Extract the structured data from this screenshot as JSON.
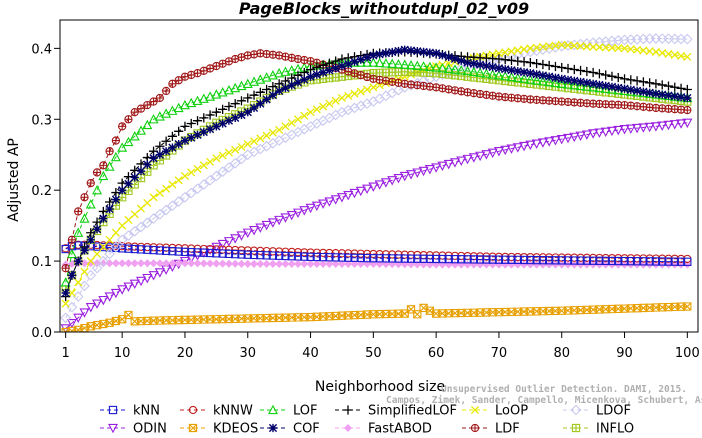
{
  "chart_data": {
    "type": "line",
    "title": "PageBlocks_withoutdupl_02_v09",
    "xlabel": "Neighborhood size",
    "ylabel": "Adjusted AP",
    "xlim": [
      1,
      100
    ],
    "ylim": [
      0,
      0.44
    ],
    "x_ticks": [
      1,
      10,
      20,
      30,
      40,
      50,
      60,
      70,
      80,
      90,
      100
    ],
    "y_ticks": [
      0.0,
      0.1,
      0.2,
      0.3,
      0.4
    ],
    "x_tick_labels": [
      "1",
      "10",
      "20",
      "30",
      "40",
      "50",
      "60",
      "70",
      "80",
      "90",
      "100"
    ],
    "y_tick_labels": [
      "0.0",
      "0.1",
      "0.2",
      "0.3",
      "0.4"
    ],
    "grid": false,
    "legend_position": "bottom",
    "watermark": [
      "Unsupervised Outlier Detection. DAMI, 2015.",
      "Campos, Zimek, Sander, Campello, Micenkova, Schubert, Assent, Houle"
    ],
    "series": [
      {
        "name": "kNN",
        "color": "#1a1ad0",
        "marker": "square",
        "points": [
          [
            1,
            0.117
          ],
          [
            2,
            0.121
          ],
          [
            3,
            0.122
          ],
          [
            5,
            0.121
          ],
          [
            10,
            0.118
          ],
          [
            20,
            0.113
          ],
          [
            30,
            0.109
          ],
          [
            40,
            0.106
          ],
          [
            50,
            0.104
          ],
          [
            60,
            0.103
          ],
          [
            70,
            0.102
          ],
          [
            80,
            0.101
          ],
          [
            90,
            0.1
          ],
          [
            100,
            0.099
          ]
        ]
      },
      {
        "name": "kNNW",
        "color": "#c02020",
        "marker": "circle",
        "points": [
          [
            1,
            0.118
          ],
          [
            2,
            0.122
          ],
          [
            3,
            0.123
          ],
          [
            5,
            0.123
          ],
          [
            10,
            0.121
          ],
          [
            20,
            0.118
          ],
          [
            30,
            0.115
          ],
          [
            40,
            0.112
          ],
          [
            50,
            0.11
          ],
          [
            60,
            0.108
          ],
          [
            70,
            0.106
          ],
          [
            80,
            0.105
          ],
          [
            90,
            0.104
          ],
          [
            100,
            0.103
          ]
        ]
      },
      {
        "name": "LOF",
        "color": "#10d010",
        "marker": "triangle-up",
        "points": [
          [
            1,
            0.07
          ],
          [
            2,
            0.11
          ],
          [
            3,
            0.14
          ],
          [
            5,
            0.18
          ],
          [
            7,
            0.22
          ],
          [
            10,
            0.26
          ],
          [
            15,
            0.3
          ],
          [
            20,
            0.32
          ],
          [
            25,
            0.335
          ],
          [
            30,
            0.35
          ],
          [
            35,
            0.365
          ],
          [
            40,
            0.375
          ],
          [
            45,
            0.38
          ],
          [
            50,
            0.38
          ],
          [
            55,
            0.377
          ],
          [
            60,
            0.373
          ],
          [
            65,
            0.368
          ],
          [
            70,
            0.362
          ],
          [
            75,
            0.356
          ],
          [
            80,
            0.35
          ],
          [
            85,
            0.345
          ],
          [
            90,
            0.34
          ],
          [
            95,
            0.335
          ],
          [
            100,
            0.33
          ]
        ]
      },
      {
        "name": "SimplifiedLOF",
        "color": "#000000",
        "marker": "plus",
        "points": [
          [
            1,
            0.05
          ],
          [
            2,
            0.08
          ],
          [
            3,
            0.1
          ],
          [
            5,
            0.14
          ],
          [
            7,
            0.17
          ],
          [
            10,
            0.21
          ],
          [
            15,
            0.255
          ],
          [
            20,
            0.29
          ],
          [
            25,
            0.31
          ],
          [
            30,
            0.33
          ],
          [
            35,
            0.35
          ],
          [
            40,
            0.37
          ],
          [
            45,
            0.385
          ],
          [
            50,
            0.393
          ],
          [
            55,
            0.395
          ],
          [
            60,
            0.392
          ],
          [
            65,
            0.388
          ],
          [
            70,
            0.385
          ],
          [
            75,
            0.38
          ],
          [
            80,
            0.373
          ],
          [
            85,
            0.366
          ],
          [
            90,
            0.357
          ],
          [
            95,
            0.35
          ],
          [
            100,
            0.342
          ]
        ]
      },
      {
        "name": "LoOP",
        "color": "#e8e800",
        "marker": "x",
        "points": [
          [
            1,
            0.04
          ],
          [
            3,
            0.07
          ],
          [
            5,
            0.1
          ],
          [
            10,
            0.15
          ],
          [
            15,
            0.19
          ],
          [
            20,
            0.22
          ],
          [
            25,
            0.245
          ],
          [
            30,
            0.265
          ],
          [
            35,
            0.285
          ],
          [
            40,
            0.31
          ],
          [
            45,
            0.33
          ],
          [
            50,
            0.345
          ],
          [
            55,
            0.36
          ],
          [
            60,
            0.375
          ],
          [
            65,
            0.385
          ],
          [
            70,
            0.393
          ],
          [
            75,
            0.4
          ],
          [
            80,
            0.405
          ],
          [
            85,
            0.402
          ],
          [
            90,
            0.4
          ],
          [
            95,
            0.395
          ],
          [
            100,
            0.388
          ]
        ]
      },
      {
        "name": "LDOF",
        "color": "#c8c8f0",
        "marker": "diamond",
        "points": [
          [
            1,
            0.02
          ],
          [
            3,
            0.05
          ],
          [
            5,
            0.08
          ],
          [
            10,
            0.13
          ],
          [
            15,
            0.16
          ],
          [
            20,
            0.19
          ],
          [
            25,
            0.22
          ],
          [
            30,
            0.25
          ],
          [
            35,
            0.27
          ],
          [
            40,
            0.29
          ],
          [
            45,
            0.31
          ],
          [
            50,
            0.325
          ],
          [
            55,
            0.345
          ],
          [
            60,
            0.36
          ],
          [
            65,
            0.375
          ],
          [
            70,
            0.385
          ],
          [
            75,
            0.395
          ],
          [
            80,
            0.403
          ],
          [
            85,
            0.408
          ],
          [
            90,
            0.412
          ],
          [
            95,
            0.414
          ],
          [
            100,
            0.413
          ]
        ]
      },
      {
        "name": "ODIN",
        "color": "#9a20e0",
        "marker": "triangle-down",
        "points": [
          [
            1,
            0.005
          ],
          [
            3,
            0.02
          ],
          [
            5,
            0.035
          ],
          [
            10,
            0.06
          ],
          [
            15,
            0.08
          ],
          [
            20,
            0.1
          ],
          [
            25,
            0.12
          ],
          [
            30,
            0.14
          ],
          [
            35,
            0.158
          ],
          [
            40,
            0.175
          ],
          [
            45,
            0.19
          ],
          [
            50,
            0.205
          ],
          [
            55,
            0.22
          ],
          [
            60,
            0.232
          ],
          [
            65,
            0.244
          ],
          [
            70,
            0.255
          ],
          [
            75,
            0.264
          ],
          [
            80,
            0.272
          ],
          [
            85,
            0.28
          ],
          [
            90,
            0.286
          ],
          [
            95,
            0.29
          ],
          [
            100,
            0.295
          ]
        ]
      },
      {
        "name": "KDEOS",
        "color": "#e8a000",
        "marker": "square-x",
        "points": [
          [
            1,
            0.0
          ],
          [
            3,
            0.003
          ],
          [
            5,
            0.008
          ],
          [
            8,
            0.013
          ],
          [
            10,
            0.018
          ],
          [
            11,
            0.024
          ],
          [
            12,
            0.015
          ],
          [
            15,
            0.016
          ],
          [
            20,
            0.017
          ],
          [
            30,
            0.019
          ],
          [
            40,
            0.021
          ],
          [
            50,
            0.025
          ],
          [
            55,
            0.026
          ],
          [
            56,
            0.032
          ],
          [
            57,
            0.025
          ],
          [
            58,
            0.034
          ],
          [
            60,
            0.026
          ],
          [
            70,
            0.028
          ],
          [
            80,
            0.03
          ],
          [
            90,
            0.033
          ],
          [
            100,
            0.036
          ]
        ]
      },
      {
        "name": "COF",
        "color": "#00006a",
        "marker": "asterisk",
        "points": [
          [
            1,
            0.055
          ],
          [
            2,
            0.08
          ],
          [
            3,
            0.1
          ],
          [
            5,
            0.13
          ],
          [
            7,
            0.16
          ],
          [
            10,
            0.2
          ],
          [
            15,
            0.245
          ],
          [
            20,
            0.27
          ],
          [
            25,
            0.29
          ],
          [
            30,
            0.31
          ],
          [
            35,
            0.34
          ],
          [
            40,
            0.36
          ],
          [
            45,
            0.375
          ],
          [
            50,
            0.39
          ],
          [
            55,
            0.398
          ],
          [
            60,
            0.393
          ],
          [
            65,
            0.38
          ],
          [
            70,
            0.372
          ],
          [
            75,
            0.365
          ],
          [
            80,
            0.357
          ],
          [
            85,
            0.35
          ],
          [
            90,
            0.343
          ],
          [
            95,
            0.336
          ],
          [
            100,
            0.33
          ]
        ]
      },
      {
        "name": "FastABOD",
        "color": "#f0a0f0",
        "marker": "diamond-filled",
        "points": [
          [
            1,
            0.095
          ],
          [
            3,
            0.097
          ],
          [
            5,
            0.097
          ],
          [
            10,
            0.097
          ],
          [
            20,
            0.097
          ],
          [
            30,
            0.096
          ],
          [
            40,
            0.096
          ],
          [
            50,
            0.096
          ],
          [
            60,
            0.095
          ],
          [
            70,
            0.095
          ],
          [
            80,
            0.095
          ],
          [
            90,
            0.095
          ],
          [
            100,
            0.095
          ]
        ]
      },
      {
        "name": "LDF",
        "color": "#a01818",
        "marker": "circle-plus",
        "points": [
          [
            1,
            0.09
          ],
          [
            2,
            0.13
          ],
          [
            3,
            0.17
          ],
          [
            4,
            0.19
          ],
          [
            5,
            0.21
          ],
          [
            6,
            0.225
          ],
          [
            7,
            0.235
          ],
          [
            8,
            0.255
          ],
          [
            9,
            0.27
          ],
          [
            10,
            0.29
          ],
          [
            12,
            0.31
          ],
          [
            14,
            0.32
          ],
          [
            16,
            0.33
          ],
          [
            18,
            0.35
          ],
          [
            20,
            0.36
          ],
          [
            22,
            0.365
          ],
          [
            25,
            0.375
          ],
          [
            28,
            0.385
          ],
          [
            30,
            0.39
          ],
          [
            32,
            0.393
          ],
          [
            35,
            0.39
          ],
          [
            38,
            0.385
          ],
          [
            40,
            0.382
          ],
          [
            45,
            0.37
          ],
          [
            50,
            0.357
          ],
          [
            55,
            0.35
          ],
          [
            60,
            0.345
          ],
          [
            65,
            0.338
          ],
          [
            70,
            0.332
          ],
          [
            75,
            0.328
          ],
          [
            80,
            0.325
          ],
          [
            85,
            0.322
          ],
          [
            90,
            0.32
          ],
          [
            95,
            0.316
          ],
          [
            100,
            0.313
          ]
        ]
      },
      {
        "name": "INFLO",
        "color": "#a0c820",
        "marker": "square-cross",
        "points": [
          [
            1,
            0.06
          ],
          [
            2,
            0.08
          ],
          [
            3,
            0.1
          ],
          [
            5,
            0.13
          ],
          [
            7,
            0.155
          ],
          [
            10,
            0.19
          ],
          [
            15,
            0.235
          ],
          [
            20,
            0.27
          ],
          [
            25,
            0.295
          ],
          [
            30,
            0.315
          ],
          [
            35,
            0.34
          ],
          [
            40,
            0.355
          ],
          [
            45,
            0.36
          ],
          [
            50,
            0.365
          ],
          [
            55,
            0.367
          ],
          [
            60,
            0.365
          ],
          [
            65,
            0.36
          ],
          [
            70,
            0.355
          ],
          [
            75,
            0.35
          ],
          [
            80,
            0.345
          ],
          [
            85,
            0.34
          ],
          [
            90,
            0.335
          ],
          [
            95,
            0.33
          ],
          [
            100,
            0.325
          ]
        ]
      }
    ]
  }
}
